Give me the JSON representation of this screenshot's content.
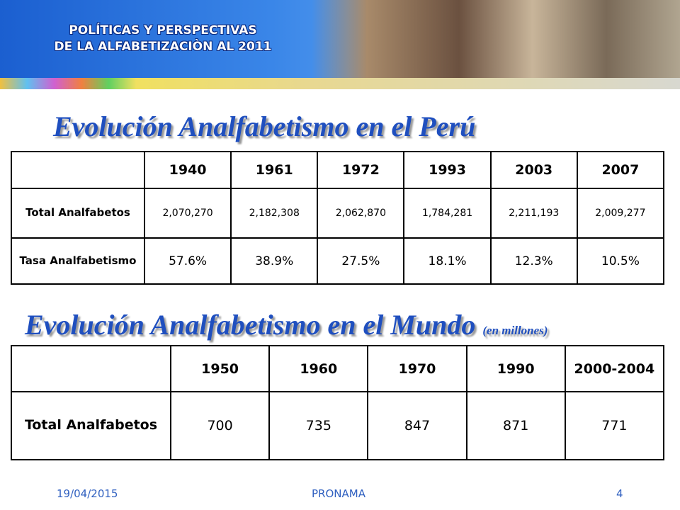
{
  "header": {
    "title_line1": "POLÍTICAS Y PERSPECTIVAS",
    "title_line2": "DE LA ALFABETIZACIÒN  AL 2011"
  },
  "peru": {
    "title": "Evolución Analfabetismo en el Perú",
    "table": {
      "columns": [
        "1940",
        "1961",
        "1972",
        "1993",
        "2003",
        "2007"
      ],
      "rows": [
        {
          "label": "Total Analfabetos",
          "cells": [
            "2,070,270",
            "2,182,308",
            "2,062,870",
            "1,784,281",
            "2,211,193",
            "2,009,277"
          ]
        },
        {
          "label": "Tasa Analfabetismo",
          "cells": [
            "57.6%",
            "38.9%",
            "27.5%",
            "18.1%",
            "12.3%",
            "10.5%"
          ]
        }
      ]
    }
  },
  "world": {
    "title": "Evolución Analfabetismo en el Mundo",
    "subtitle": "(en millones)",
    "table": {
      "columns": [
        "1950",
        "1960",
        "1970",
        "1990",
        "2000-2004"
      ],
      "rows": [
        {
          "label": "Total Analfabetos",
          "cells": [
            "700",
            "735",
            "847",
            "871",
            "771"
          ]
        }
      ]
    }
  },
  "footer": {
    "date": "19/04/2015",
    "org": "PRONAMA",
    "page": "4"
  }
}
